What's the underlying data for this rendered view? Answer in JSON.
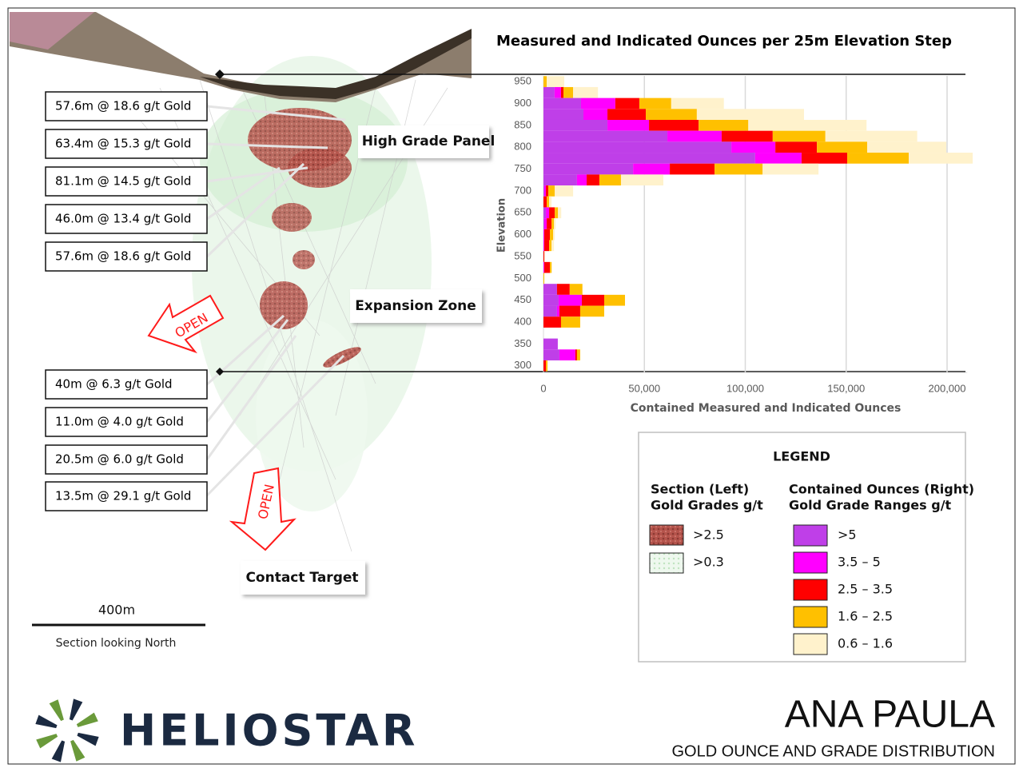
{
  "chart_data": {
    "type": "bar",
    "orientation": "horizontal",
    "stacked": true,
    "title": "Measured and Indicated Ounces per 25m Elevation Step",
    "xlabel": "Contained Measured and Indicated Ounces",
    "ylabel": "Elevation",
    "y": [
      950,
      925,
      900,
      875,
      850,
      825,
      800,
      775,
      750,
      725,
      700,
      675,
      650,
      625,
      600,
      575,
      550,
      525,
      500,
      475,
      450,
      425,
      400,
      375,
      350,
      325,
      300
    ],
    "series": [
      {
        "name": ">5",
        "color": "#bf3fe8",
        "values": [
          0,
          5500,
          18600,
          19800,
          31700,
          61400,
          93100,
          104900,
          44400,
          16600,
          400,
          0,
          1200,
          400,
          0,
          0,
          0,
          0,
          0,
          6700,
          7500,
          6700,
          0,
          0,
          7100,
          7900,
          0
        ]
      },
      {
        "name": "3.5 – 5",
        "color": "#ff00ff",
        "values": [
          0,
          3200,
          17000,
          11900,
          20600,
          26900,
          21800,
          23000,
          18200,
          4800,
          800,
          0,
          1600,
          1200,
          400,
          400,
          0,
          400,
          0,
          0,
          11500,
          1200,
          0,
          0,
          0,
          7900,
          0
        ]
      },
      {
        "name": "2.5 – 3.5",
        "color": "#ff0000",
        "values": [
          0,
          1200,
          11900,
          19000,
          24600,
          25300,
          20600,
          22600,
          22200,
          6300,
          1200,
          1600,
          2800,
          2400,
          2800,
          2400,
          400,
          2800,
          0,
          6300,
          11100,
          10300,
          8700,
          0,
          0,
          800,
          1200
        ]
      },
      {
        "name": "1.6 – 2.5",
        "color": "#ffc000",
        "values": [
          1600,
          4800,
          15800,
          25300,
          24600,
          26100,
          24900,
          30500,
          23800,
          10700,
          3200,
          1200,
          1600,
          1200,
          1600,
          1200,
          0,
          800,
          400,
          6300,
          10300,
          11900,
          9500,
          0,
          0,
          1600,
          800
        ]
      },
      {
        "name": "0.6 – 1.6",
        "color": "#fff2cc",
        "values": [
          8700,
          12300,
          26100,
          53100,
          58600,
          45500,
          39200,
          31700,
          27700,
          21000,
          9100,
          1200,
          1600,
          800,
          800,
          1200,
          400,
          400,
          0,
          0,
          0,
          0,
          0,
          0,
          0,
          0,
          0
        ]
      }
    ],
    "xlim": [
      0,
      210000
    ],
    "xticks": [
      0,
      {
        "value": 50000,
        "label": "50,000"
      },
      {
        "value": 100000,
        "label": "100,000"
      },
      {
        "value": 150000,
        "label": "150,000"
      },
      {
        "value": 200000,
        "label": "200,000"
      }
    ],
    "ylim": [
      285,
      963
    ],
    "yticks": [
      300,
      350,
      400,
      450,
      500,
      550,
      600,
      650,
      700,
      750,
      800,
      850,
      900,
      950
    ],
    "grid": true,
    "grid_color": "#d9d9d9"
  },
  "section": {
    "callouts": [
      "57.6m @ 18.6 g/t Gold",
      "63.4m @ 15.3 g/t Gold",
      "81.1m @ 14.5 g/t Gold",
      "46.0m @ 13.4 g/t Gold",
      "57.6m @ 18.6 g/t Gold",
      "40m @ 6.3 g/t Gold",
      "11.0m @ 4.0 g/t Gold",
      "20.5m @ 6.0 g/t Gold",
      "13.5m @ 29.1 g/t Gold"
    ],
    "zones": [
      "High Grade Panel",
      "Expansion Zone",
      "Contact Target"
    ],
    "open_labels": [
      "OPEN",
      "OPEN"
    ],
    "scale": "400m",
    "view": "Section looking North"
  },
  "legend": {
    "title": "LEGEND",
    "section_heading": [
      "Section (Left)",
      "Gold Grades g/t"
    ],
    "section_items": [
      ">2.5",
      ">0.3"
    ],
    "ounces_heading": [
      "Contained Ounces (Right)",
      "Gold Grade Ranges g/t"
    ]
  },
  "footer": {
    "company": "HELIOSTAR",
    "project": "ANA PAULA",
    "subtitle": "GOLD OUNCE AND GRADE DISTRIBUTION"
  }
}
